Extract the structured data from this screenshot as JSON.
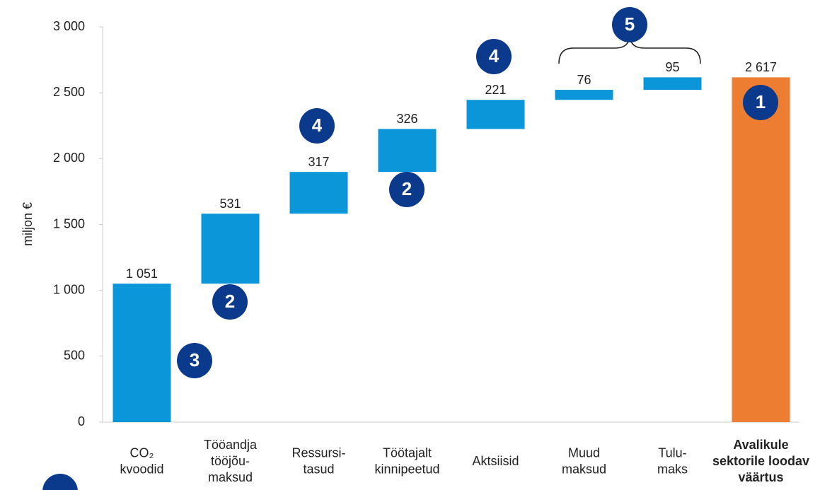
{
  "chart_data": {
    "type": "waterfall",
    "y_label": "miljon €",
    "categories": [
      "CO₂\nkvoodid",
      "Tööandja\ntööjõu-\nmaksud",
      "Ressursi-\ntasud",
      "Töötajalt\nkinnipeetud",
      "Aktsiisid",
      "Muud\nmaksud",
      "Tulu-\nmaks",
      "Avalikule\nsektorile loodav\nväärtus"
    ],
    "values": [
      1051,
      531,
      317,
      326,
      221,
      76,
      95,
      2617
    ],
    "value_labels": [
      "1 051",
      "531",
      "317",
      "326",
      "221",
      "76",
      "95",
      "2 617"
    ],
    "color": "#0a96d8",
    "total_color": "#ed7d31",
    "ylim": [
      0,
      3000
    ],
    "yticks": [
      0,
      500,
      {
        "value": 1000,
        "label": "1 000"
      },
      {
        "value": 1500,
        "label": "1 500"
      },
      {
        "value": 2000,
        "label": "2 000"
      },
      {
        "value": 2500,
        "label": "2 500"
      },
      {
        "value": 3000,
        "label": "3 000"
      }
    ],
    "annotations": [
      "3",
      "2",
      "4",
      "2",
      "4",
      "5",
      "1"
    ]
  }
}
